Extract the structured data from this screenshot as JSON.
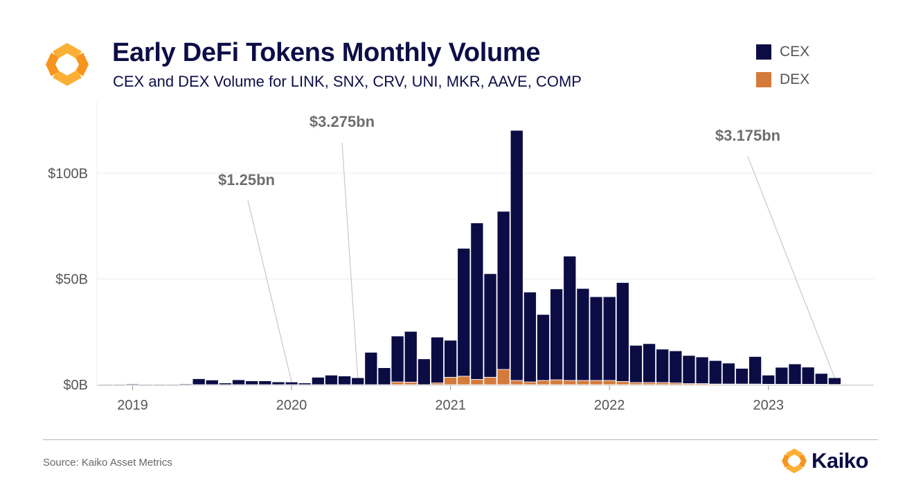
{
  "header": {
    "title": "Early DeFi Tokens Monthly Volume",
    "subtitle": "CEX and DEX Volume for LINK, SNX, CRV, UNI, MKR, AAVE, COMP"
  },
  "legend": {
    "items": [
      {
        "label": "CEX",
        "color": "#0c0c45"
      },
      {
        "label": "DEX",
        "color": "#d47a3b"
      }
    ]
  },
  "footer": {
    "source": "Source: Kaiko Asset Metrics",
    "brand": "Kaiko"
  },
  "colors": {
    "brand_orange": "#f7941d",
    "brand_yellow": "#fbb035",
    "navy": "#0d0d47"
  },
  "chart_data": {
    "type": "bar",
    "stacked": true,
    "x_unit": "month",
    "x": [
      "2018-11",
      "2018-12",
      "2019-01",
      "2019-02",
      "2019-03",
      "2019-04",
      "2019-05",
      "2019-06",
      "2019-07",
      "2019-08",
      "2019-09",
      "2019-10",
      "2019-11",
      "2019-12",
      "2020-01",
      "2020-02",
      "2020-03",
      "2020-04",
      "2020-05",
      "2020-06",
      "2020-07",
      "2020-08",
      "2020-09",
      "2020-10",
      "2020-11",
      "2020-12",
      "2021-01",
      "2021-02",
      "2021-03",
      "2021-04",
      "2021-05",
      "2021-06",
      "2021-07",
      "2021-08",
      "2021-09",
      "2021-10",
      "2021-11",
      "2021-12",
      "2022-01",
      "2022-02",
      "2022-03",
      "2022-04",
      "2022-05",
      "2022-06",
      "2022-07",
      "2022-08",
      "2022-09",
      "2022-10",
      "2022-11",
      "2022-12",
      "2023-01",
      "2023-02",
      "2023-03",
      "2023-04",
      "2023-05",
      "2023-06"
    ],
    "series": [
      {
        "name": "CEX",
        "color": "#0c0c45",
        "values": [
          0.1,
          0.1,
          0.4,
          0.1,
          0.1,
          0.1,
          0.4,
          2.8,
          2.2,
          0.8,
          2.3,
          1.8,
          1.8,
          1.3,
          1.25,
          0.8,
          3.5,
          4.5,
          4.1,
          3.275,
          15.3,
          8.0,
          21.7,
          24.0,
          12.2,
          21.7,
          17.5,
          60.5,
          74.0,
          49.0,
          74.8,
          118.3,
          42.5,
          31.2,
          43.0,
          58.8,
          43.5,
          39.6,
          39.6,
          46.8,
          17.6,
          18.4,
          15.8,
          15.2,
          13.3,
          12.6,
          11.1,
          9.9,
          7.4,
          13.0,
          4.3,
          8.0,
          9.6,
          8.1,
          5.1,
          3.175
        ]
      },
      {
        "name": "DEX",
        "color": "#d47a3b",
        "values": [
          0,
          0,
          0,
          0,
          0,
          0,
          0,
          0,
          0,
          0,
          0,
          0,
          0,
          0,
          0,
          0,
          0,
          0,
          0,
          0,
          0,
          0,
          1.3,
          1.2,
          0,
          0.8,
          3.5,
          4.0,
          2.5,
          3.5,
          7.2,
          2.0,
          1.3,
          2.0,
          2.3,
          2.0,
          2.0,
          2.0,
          2.0,
          1.5,
          1.0,
          1.0,
          1.0,
          0.8,
          0.5,
          0.5,
          0.3,
          0.3,
          0.3,
          0.3,
          0.2,
          0.2,
          0.2,
          0.2,
          0.2,
          0.1
        ]
      }
    ],
    "x_ticks": [
      "2019",
      "2020",
      "2021",
      "2022",
      "2023"
    ],
    "y_ticks": [
      "$0B",
      "$50B",
      "$100B"
    ],
    "ylim": [
      0,
      125
    ],
    "grid": true,
    "legend_position": "top-right",
    "annotations": [
      {
        "text": "$1.25bn",
        "x": "2020-01"
      },
      {
        "text": "$3.275bn",
        "x": "2020-06"
      },
      {
        "text": "$3.175bn",
        "x": "2023-06"
      }
    ]
  }
}
